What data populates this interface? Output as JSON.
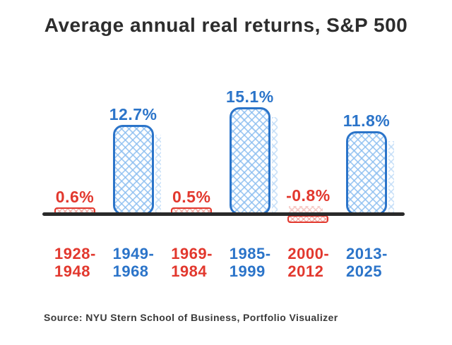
{
  "title": "Average annual real returns, S&P 500",
  "source": "Source: NYU Stern School of Business, Portfolio Visualizer",
  "colors": {
    "blue": "#2b74c9",
    "red": "#e2382e",
    "blue_hatch": "rgba(140,190,240,0.8)",
    "red_hatch": "rgba(240,165,158,0.85)",
    "axis": "#2a2a2a",
    "title_text": "#2d2d2d",
    "source_text": "#3a3a3a"
  },
  "chart_data": {
    "type": "bar",
    "title": "Average annual real returns, S&P 500",
    "categories": [
      "1928-1948",
      "1949-1968",
      "1969-1984",
      "1985-1999",
      "2000-2012",
      "2013-2025"
    ],
    "values": [
      0.6,
      12.7,
      0.5,
      15.1,
      -0.8,
      11.8
    ],
    "value_labels": [
      "0.6%",
      "12.7%",
      "0.5%",
      "15.1%",
      "-0.8%",
      "11.8%"
    ],
    "bar_colors": [
      "red",
      "blue",
      "red",
      "blue",
      "red",
      "blue"
    ],
    "xlabel": "",
    "ylabel": "",
    "ylim": [
      -2,
      16
    ],
    "grid": false,
    "legend": false,
    "baseline": 0,
    "source": "Source: NYU Stern School of Business, Portfolio Visualizer"
  }
}
